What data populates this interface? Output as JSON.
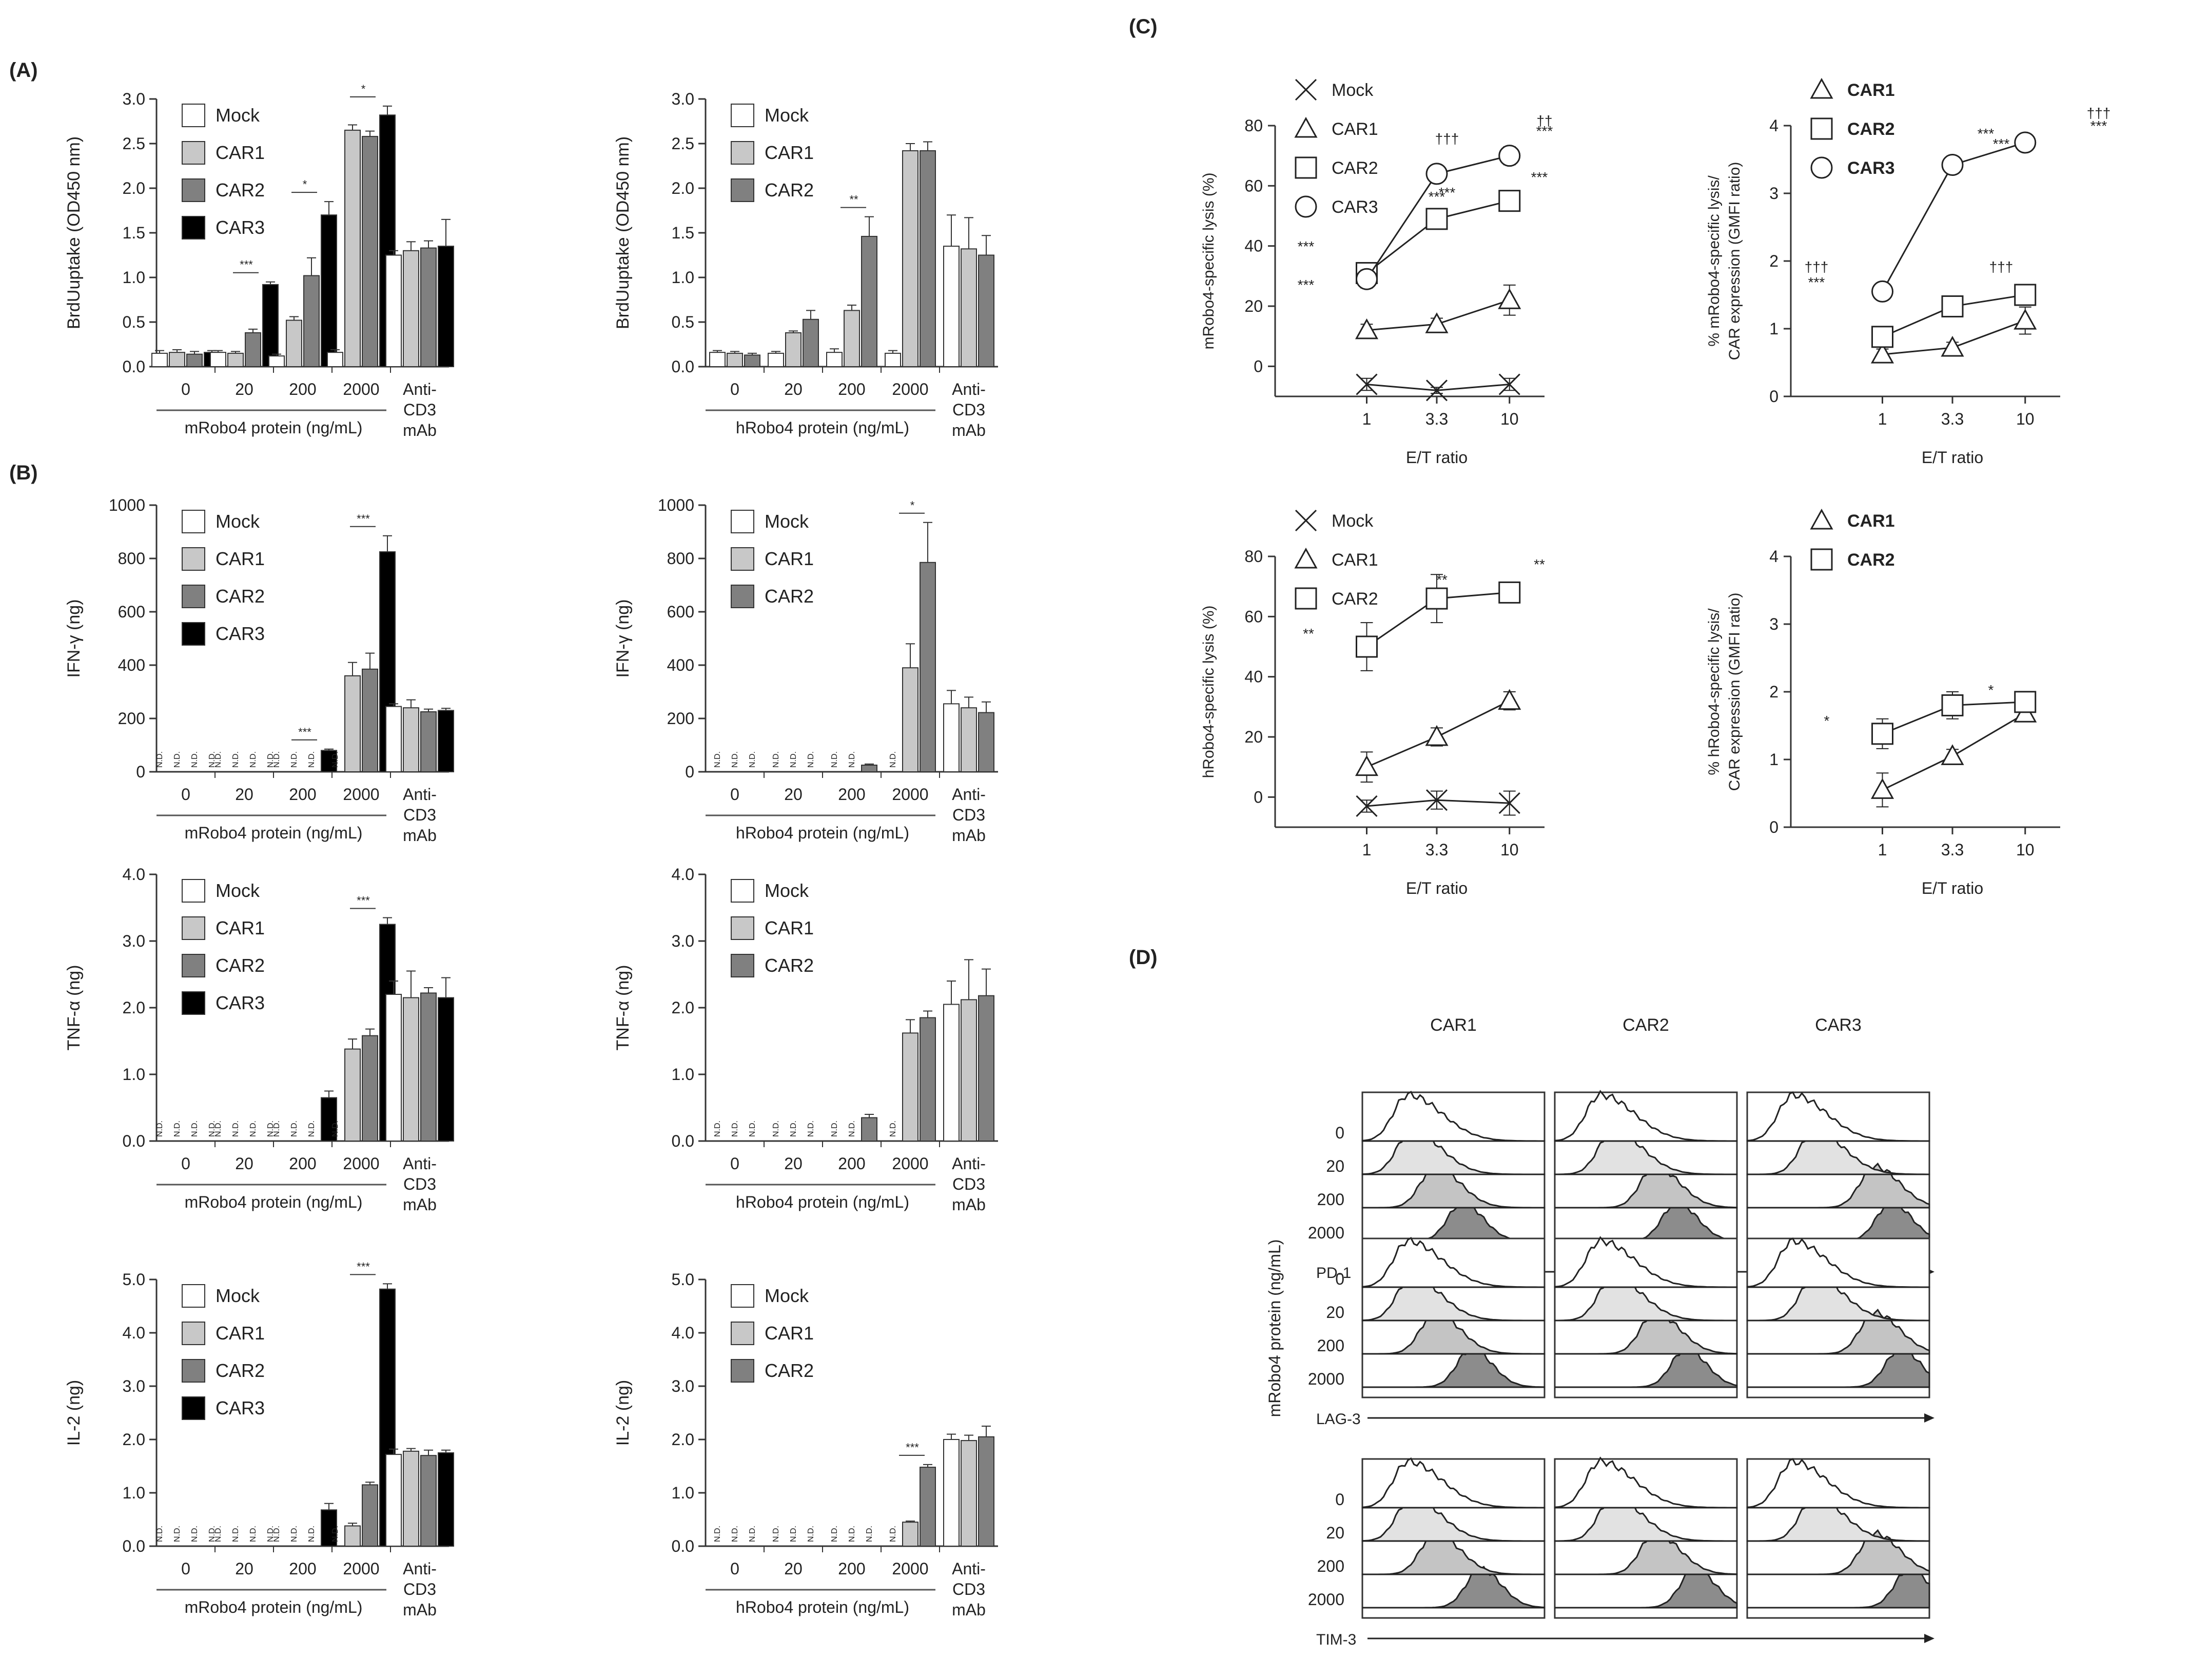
{
  "panel_labels": {
    "A": "(A)",
    "B": "(B)",
    "C": "(C)",
    "D": "(D)"
  },
  "common": {
    "anti_cd3": [
      "Anti-",
      "CD3",
      "mAb"
    ],
    "nd": "N.D.",
    "et_ratio": "E/T ratio"
  },
  "colors": {
    "Mock": "#ffffff",
    "CAR1": "#c8c8c8",
    "CAR2": "#808080",
    "CAR3": "#000000"
  },
  "chart_data": [
    {
      "id": "A_m",
      "type": "bar",
      "ylabel": "BrdUuptake (OD450 nm)",
      "xlabel": "mRobo4 protein (ng/mL)",
      "ylim": [
        0,
        3.0
      ],
      "yticks": [
        0.0,
        0.5,
        1.0,
        1.5,
        2.0,
        2.5,
        3.0
      ],
      "yfmt": 1,
      "categories": [
        "0",
        "20",
        "200",
        "2000",
        "Anti-CD3 mAb"
      ],
      "series": [
        {
          "name": "Mock",
          "values": [
            0.15,
            0.16,
            0.12,
            0.16,
            1.25
          ],
          "err": [
            0.03,
            0.02,
            0.02,
            0.03,
            0.05
          ]
        },
        {
          "name": "CAR1",
          "values": [
            0.16,
            0.15,
            0.52,
            2.65,
            1.3
          ],
          "err": [
            0.03,
            0.02,
            0.04,
            0.06,
            0.1
          ]
        },
        {
          "name": "CAR2",
          "values": [
            0.14,
            0.38,
            1.02,
            2.58,
            1.33
          ],
          "err": [
            0.03,
            0.04,
            0.2,
            0.06,
            0.08
          ]
        },
        {
          "name": "CAR3",
          "values": [
            0.16,
            0.92,
            1.7,
            2.82,
            1.35
          ],
          "err": [
            0.02,
            0.03,
            0.15,
            0.1,
            0.3
          ]
        }
      ],
      "sig": [
        {
          "cat": 1,
          "text": "*** / *** / ***"
        },
        {
          "cat": 2,
          "text": "* / *** / **"
        },
        {
          "cat": 3,
          "text": "*"
        }
      ]
    },
    {
      "id": "A_h",
      "type": "bar",
      "ylabel": "BrdUuptake (OD450 nm)",
      "xlabel": "hRobo4 protein (ng/mL)",
      "ylim": [
        0,
        3.0
      ],
      "yticks": [
        0.0,
        0.5,
        1.0,
        1.5,
        2.0,
        2.5,
        3.0
      ],
      "yfmt": 1,
      "categories": [
        "0",
        "20",
        "200",
        "2000",
        "Anti-CD3 mAb"
      ],
      "series": [
        {
          "name": "Mock",
          "values": [
            0.16,
            0.15,
            0.16,
            0.15,
            1.35
          ],
          "err": [
            0.02,
            0.02,
            0.04,
            0.03,
            0.35
          ]
        },
        {
          "name": "CAR1",
          "values": [
            0.15,
            0.38,
            0.63,
            2.42,
            1.32
          ],
          "err": [
            0.02,
            0.02,
            0.06,
            0.08,
            0.35
          ]
        },
        {
          "name": "CAR2",
          "values": [
            0.13,
            0.53,
            1.46,
            2.42,
            1.25
          ],
          "err": [
            0.02,
            0.1,
            0.22,
            0.1,
            0.22
          ]
        }
      ],
      "sig": [
        {
          "cat": 2,
          "text": "**"
        }
      ]
    },
    {
      "id": "B1_m",
      "type": "bar",
      "ylabel": "IFN-γ (ng)",
      "xlabel": "mRobo4 protein (ng/mL)",
      "ylim": [
        0,
        1000
      ],
      "yticks": [
        0,
        200,
        400,
        600,
        800,
        1000
      ],
      "yfmt": 0,
      "categories": [
        "0",
        "20",
        "200",
        "2000",
        "Anti-CD3 mAb"
      ],
      "series": [
        {
          "name": "Mock",
          "values": [
            null,
            null,
            null,
            null,
            245
          ],
          "err": [
            0,
            0,
            0,
            0,
            10
          ]
        },
        {
          "name": "CAR1",
          "values": [
            null,
            null,
            null,
            360,
            240
          ],
          "err": [
            0,
            0,
            0,
            50,
            30
          ]
        },
        {
          "name": "CAR2",
          "values": [
            null,
            null,
            null,
            385,
            225
          ],
          "err": [
            0,
            0,
            0,
            60,
            10
          ]
        },
        {
          "name": "CAR3",
          "values": [
            null,
            null,
            80,
            825,
            230
          ],
          "err": [
            0,
            0,
            5,
            60,
            8
          ]
        }
      ],
      "sig": [
        {
          "cat": 2,
          "text": "*** / ***"
        },
        {
          "cat": 3,
          "text": "*** / **"
        }
      ]
    },
    {
      "id": "B1_h",
      "type": "bar",
      "ylabel": "IFN-γ (ng)",
      "xlabel": "hRobo4 protein (ng/mL)",
      "ylim": [
        0,
        1000
      ],
      "yticks": [
        0,
        200,
        400,
        600,
        800,
        1000
      ],
      "yfmt": 0,
      "categories": [
        "0",
        "20",
        "200",
        "2000",
        "Anti-CD3 mAb"
      ],
      "series": [
        {
          "name": "Mock",
          "values": [
            null,
            null,
            null,
            null,
            255
          ],
          "err": [
            0,
            0,
            0,
            0,
            50
          ]
        },
        {
          "name": "CAR1",
          "values": [
            null,
            null,
            null,
            390,
            240
          ],
          "err": [
            0,
            0,
            0,
            90,
            40
          ]
        },
        {
          "name": "CAR2",
          "values": [
            null,
            null,
            25,
            785,
            222
          ],
          "err": [
            0,
            0,
            4,
            150,
            40
          ]
        }
      ],
      "sig": [
        {
          "cat": 3,
          "text": "*"
        }
      ]
    },
    {
      "id": "B2_m",
      "type": "bar",
      "ylabel": "TNF-α (ng)",
      "xlabel": "mRobo4 protein (ng/mL)",
      "ylim": [
        0,
        4.0
      ],
      "yticks": [
        0.0,
        1.0,
        2.0,
        3.0,
        4.0
      ],
      "yfmt": 1,
      "categories": [
        "0",
        "20",
        "200",
        "2000",
        "Anti-CD3 mAb"
      ],
      "series": [
        {
          "name": "Mock",
          "values": [
            null,
            null,
            null,
            null,
            2.2
          ],
          "err": [
            0,
            0,
            0,
            0,
            0.2
          ]
        },
        {
          "name": "CAR1",
          "values": [
            null,
            null,
            null,
            1.38,
            2.15
          ],
          "err": [
            0,
            0,
            0,
            0.15,
            0.4
          ]
        },
        {
          "name": "CAR2",
          "values": [
            null,
            null,
            null,
            1.58,
            2.22
          ],
          "err": [
            0,
            0,
            0,
            0.1,
            0.08
          ]
        },
        {
          "name": "CAR3",
          "values": [
            null,
            null,
            0.65,
            3.25,
            2.15
          ],
          "err": [
            0,
            0,
            0.1,
            0.1,
            0.3
          ]
        }
      ],
      "sig": [
        {
          "cat": 3,
          "text": "*** / ***"
        }
      ]
    },
    {
      "id": "B2_h",
      "type": "bar",
      "ylabel": "TNF-α (ng)",
      "xlabel": "hRobo4 protein (ng/mL)",
      "ylim": [
        0,
        4.0
      ],
      "yticks": [
        0.0,
        1.0,
        2.0,
        3.0,
        4.0
      ],
      "yfmt": 1,
      "categories": [
        "0",
        "20",
        "200",
        "2000",
        "Anti-CD3 mAb"
      ],
      "series": [
        {
          "name": "Mock",
          "values": [
            null,
            null,
            null,
            null,
            2.05
          ],
          "err": [
            0,
            0,
            0,
            0,
            0.35
          ]
        },
        {
          "name": "CAR1",
          "values": [
            null,
            null,
            null,
            1.62,
            2.12
          ],
          "err": [
            0,
            0,
            0,
            0.2,
            0.6
          ]
        },
        {
          "name": "CAR2",
          "values": [
            null,
            null,
            0.35,
            1.85,
            2.18
          ],
          "err": [
            0,
            0,
            0.05,
            0.1,
            0.4
          ]
        }
      ],
      "sig": []
    },
    {
      "id": "B3_m",
      "type": "bar",
      "ylabel": "IL-2 (ng)",
      "xlabel": "mRobo4 protein (ng/mL)",
      "ylim": [
        0,
        5.0
      ],
      "yticks": [
        0.0,
        1.0,
        2.0,
        3.0,
        4.0,
        5.0
      ],
      "yfmt": 1,
      "categories": [
        "0",
        "20",
        "200",
        "2000",
        "Anti-CD3 mAb"
      ],
      "series": [
        {
          "name": "Mock",
          "values": [
            null,
            null,
            null,
            null,
            1.72
          ],
          "err": [
            0,
            0,
            0,
            0,
            0.1
          ]
        },
        {
          "name": "CAR1",
          "values": [
            null,
            null,
            null,
            0.38,
            1.78
          ],
          "err": [
            0,
            0,
            0,
            0.05,
            0.05
          ]
        },
        {
          "name": "CAR2",
          "values": [
            null,
            null,
            null,
            1.15,
            1.7
          ],
          "err": [
            0,
            0,
            0,
            0.05,
            0.1
          ]
        },
        {
          "name": "CAR3",
          "values": [
            null,
            null,
            0.68,
            4.82,
            1.75
          ],
          "err": [
            0,
            0,
            0.12,
            0.1,
            0.05
          ]
        }
      ],
      "sig": [
        {
          "cat": 3,
          "text": "*** / *** / **"
        }
      ]
    },
    {
      "id": "B3_h",
      "type": "bar",
      "ylabel": "IL-2 (ng)",
      "xlabel": "hRobo4 protein (ng/mL)",
      "ylim": [
        0,
        5.0
      ],
      "yticks": [
        0.0,
        1.0,
        2.0,
        3.0,
        4.0,
        5.0
      ],
      "yfmt": 1,
      "categories": [
        "0",
        "20",
        "200",
        "2000",
        "Anti-CD3 mAb"
      ],
      "series": [
        {
          "name": "Mock",
          "values": [
            null,
            null,
            null,
            null,
            2.0
          ],
          "err": [
            0,
            0,
            0,
            0,
            0.1
          ]
        },
        {
          "name": "CAR1",
          "values": [
            null,
            null,
            null,
            0.45,
            1.98
          ],
          "err": [
            0,
            0,
            0,
            0.02,
            0.1
          ]
        },
        {
          "name": "CAR2",
          "values": [
            null,
            null,
            null,
            1.48,
            2.05
          ],
          "err": [
            0,
            0,
            0,
            0.05,
            0.2
          ]
        }
      ],
      "sig": [
        {
          "cat": 3,
          "text": "***"
        }
      ]
    },
    {
      "id": "C1",
      "type": "line",
      "ylabel": "mRobo4-specific lysis (%)",
      "xlabel": "E/T ratio",
      "ylim": [
        -10,
        80
      ],
      "yticks": [
        0,
        20,
        40,
        60,
        80
      ],
      "yfmt": 0,
      "x": [
        "1",
        "3.3",
        "10"
      ],
      "series": [
        {
          "name": "Mock",
          "marker": "x",
          "values": [
            -6,
            -8,
            -6
          ],
          "err": [
            2,
            1,
            2
          ]
        },
        {
          "name": "CAR1",
          "marker": "triangle",
          "values": [
            12,
            14,
            22
          ],
          "err": [
            2,
            2,
            5
          ]
        },
        {
          "name": "CAR2",
          "marker": "square",
          "values": [
            31,
            49,
            55
          ],
          "err": [
            3,
            3,
            3
          ]
        },
        {
          "name": "CAR3",
          "marker": "circle",
          "values": [
            29,
            64,
            70
          ],
          "err": [
            3,
            2,
            3
          ]
        }
      ],
      "annotations": [
        "***",
        "***",
        "†††",
        "***",
        "***",
        "††",
        "***",
        "***"
      ]
    },
    {
      "id": "C2",
      "type": "line",
      "ylabel": "% mRobo4-specific lysis/ CAR expression (GMFI ratio)",
      "xlabel": "E/T ratio",
      "ylim": [
        0,
        4
      ],
      "yticks": [
        0,
        1,
        2,
        3,
        4
      ],
      "yfmt": 0,
      "x": [
        "1",
        "3.3",
        "10"
      ],
      "series": [
        {
          "name": "CAR1",
          "marker": "triangle",
          "values": [
            0.62,
            0.72,
            1.12
          ],
          "err": [
            0.08,
            0.08,
            0.2
          ]
        },
        {
          "name": "CAR2",
          "marker": "square",
          "values": [
            0.88,
            1.33,
            1.5
          ],
          "err": [
            0.1,
            0.1,
            0.1
          ]
        },
        {
          "name": "CAR3",
          "marker": "circle",
          "values": [
            1.55,
            3.42,
            3.75
          ],
          "err": [
            0.05,
            0.05,
            0.1
          ]
        }
      ],
      "annotations": [
        "†††",
        "***",
        "***",
        "†††",
        "***",
        "†††",
        "***"
      ]
    },
    {
      "id": "C3",
      "type": "line",
      "ylabel": "hRobo4-specific lysis (%)",
      "xlabel": "E/T ratio",
      "ylim": [
        -10,
        80
      ],
      "yticks": [
        0,
        20,
        40,
        60,
        80
      ],
      "yfmt": 0,
      "x": [
        "1",
        "3.3",
        "10"
      ],
      "series": [
        {
          "name": "Mock",
          "marker": "x",
          "values": [
            -3,
            -1,
            -2
          ],
          "err": [
            2,
            3,
            4
          ]
        },
        {
          "name": "CAR1",
          "marker": "triangle",
          "values": [
            10,
            20,
            32
          ],
          "err": [
            5,
            3,
            3
          ]
        },
        {
          "name": "CAR2",
          "marker": "square",
          "values": [
            50,
            66,
            68
          ],
          "err": [
            8,
            8,
            3
          ]
        }
      ],
      "annotations": [
        "**",
        "**",
        "**"
      ]
    },
    {
      "id": "C4",
      "type": "line",
      "ylabel": "% hRobo4-specific lysis/ CAR expression (GMFI ratio)",
      "xlabel": "E/T ratio",
      "ylim": [
        0,
        4
      ],
      "yticks": [
        0,
        1,
        2,
        3,
        4
      ],
      "yfmt": 0,
      "x": [
        "1",
        "3.3",
        "10"
      ],
      "series": [
        {
          "name": "CAR1",
          "marker": "triangle",
          "values": [
            0.55,
            1.05,
            1.68
          ],
          "err": [
            0.25,
            0.1,
            0.05
          ]
        },
        {
          "name": "CAR2",
          "marker": "square",
          "values": [
            1.38,
            1.8,
            1.85
          ],
          "err": [
            0.22,
            0.2,
            0.05
          ]
        }
      ],
      "annotations": [
        "*",
        "*"
      ]
    },
    {
      "id": "D",
      "type": "histogram",
      "columns": [
        "CAR1",
        "CAR2",
        "CAR3"
      ],
      "markers": [
        "PD-1",
        "LAG-3",
        "TIM-3"
      ],
      "ylabel": "mRobo4 protein (ng/mL)",
      "levels": [
        "0",
        "20",
        "200",
        "2000"
      ],
      "fills": [
        "#ffffff",
        "#e2e2e2",
        "#c4c4c4",
        "#8c8c8c"
      ]
    }
  ]
}
